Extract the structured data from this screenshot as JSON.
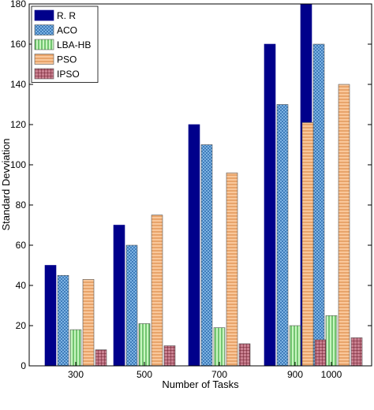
{
  "chart_data": {
    "type": "bar",
    "title": "",
    "xlabel": "Number of Tasks",
    "ylabel": "Standard Devviation",
    "categories": [
      "300",
      "500",
      "700",
      "900",
      "1000"
    ],
    "ylim": [
      0,
      180
    ],
    "yticks": [
      0,
      20,
      40,
      60,
      80,
      100,
      120,
      140,
      160,
      180
    ],
    "grid": false,
    "legend_position": "top-left",
    "series": [
      {
        "name": "R. R",
        "values": [
          50,
          70,
          120,
          160,
          180
        ],
        "color": "#00008b",
        "pattern": "solid"
      },
      {
        "name": "ACO",
        "values": [
          45,
          60,
          110,
          130,
          160
        ],
        "color": "#5a9bd5",
        "pattern": "crosshatch"
      },
      {
        "name": "LBA-HB",
        "values": [
          18,
          21,
          19,
          20,
          25
        ],
        "color": "#66cc66",
        "pattern": "vertical"
      },
      {
        "name": "PSO",
        "values": [
          43,
          75,
          96,
          121,
          140
        ],
        "color": "#f4a460",
        "pattern": "horizontal"
      },
      {
        "name": "IPSO",
        "values": [
          8,
          10,
          11,
          13,
          14
        ],
        "color": "#8b2e3e",
        "pattern": "grid"
      }
    ]
  }
}
